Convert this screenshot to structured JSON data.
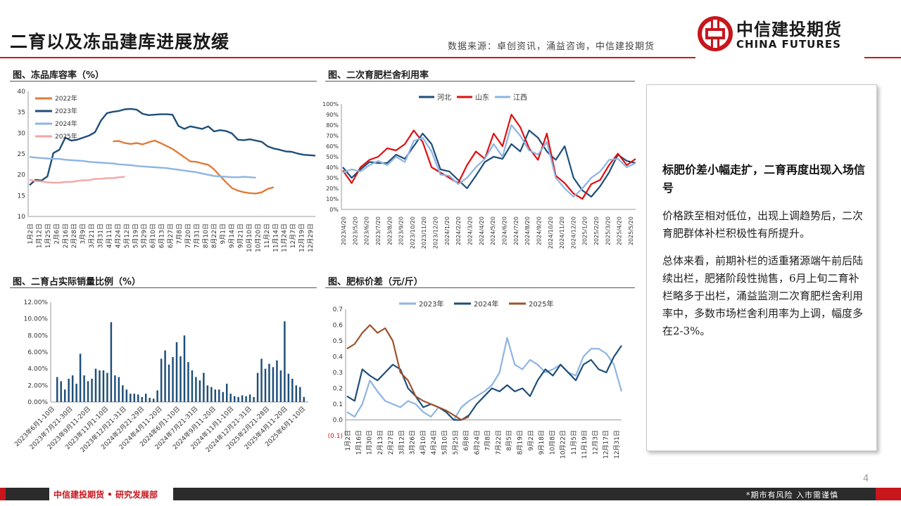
{
  "header": {
    "title": "二育以及冻品建库进展放缓",
    "source": "数据来源：卓创资讯，涌益咨询，中信建投期货",
    "logo_cn": "中信建投期货",
    "logo_en": "CHINA FUTURES"
  },
  "colors": {
    "brand_red": "#c8161d",
    "navy": "#1f4e79",
    "orange": "#e07b39",
    "lightblue": "#8eb4e3",
    "pink": "#f4a6a6",
    "red": "#e01010",
    "brown": "#a0522d"
  },
  "panels": {
    "p1_title": "图、冻品库容率（%）",
    "p2_title": "图、二次育肥栏舍利用率",
    "p3_title": "图、二育占实际销量比例（%）",
    "p4_title": "图、肥标价差（元/斤）"
  },
  "textbox": {
    "heading": "标肥价差小幅走扩，二育再度出现入场信号",
    "para1": "价格跌至相对低位，出现上调趋势后，二次育肥群体补栏积极性有所提升。",
    "para2": "总体来看，前期补栏的适重猪源端午前后陆续出栏，肥猪阶段性抛售，6月上旬二育补栏略多于出栏，涌益监测二次育肥栏舍利用率中，多数市场栏舍利用率为上调，幅度多在2-3%。"
  },
  "footer": {
    "left": "中信建投期货 • 研究发展部",
    "right": "*期市有风险  入市需谨慎",
    "page": "4"
  },
  "chart_data": [
    {
      "type": "line",
      "title": "图、冻品库容率（%）",
      "ylim": [
        10,
        40
      ],
      "yticks": [
        "40",
        "35",
        "30",
        "25",
        "20",
        "15",
        "10"
      ],
      "xticks": [
        "1月2日",
        "1月12日",
        "1月25日",
        "2月6日",
        "2月16日",
        "2月28日",
        "3月9日",
        "3月21日",
        "3月31日",
        "4月11日",
        "4月24日",
        "5月12日",
        "5月19日",
        "5月29日",
        "6月10日",
        "6月13日",
        "6月27日",
        "7月8日",
        "7月20日",
        "7月31日",
        "8月10日",
        "8月22日",
        "9月1日",
        "9月14日",
        "9月21日",
        "10月10日",
        "10月20日",
        "11月2日",
        "11月14日",
        "11月24日",
        "12月7日",
        "12月19日",
        "12月29日"
      ],
      "series": [
        {
          "name": "2022年",
          "color": "#e07b39",
          "start": 14,
          "values": [
            28.0,
            28.1,
            27.6,
            27.4,
            27.6,
            27.3,
            27.8,
            28.2,
            27.6,
            26.9,
            26.2,
            25.2,
            24.2,
            23.2,
            23.1,
            22.7,
            22.4,
            21.3,
            19.7,
            18.2,
            16.8,
            16.2,
            15.8,
            15.6,
            15.5,
            15.8,
            16.6,
            17.0
          ]
        },
        {
          "name": "2023年",
          "color": "#1f4e79",
          "start": 0,
          "values": [
            17.5,
            18.8,
            18.6,
            19.6,
            25.2,
            26.0,
            28.9,
            28.2,
            28.4,
            28.9,
            29.4,
            30.2,
            33.0,
            34.8,
            35.1,
            35.3,
            35.7,
            35.8,
            35.6,
            34.6,
            34.3,
            34.4,
            34.5,
            34.5,
            34.4,
            31.7,
            31.0,
            31.6,
            31.3,
            31.0,
            31.6,
            30.4,
            30.7,
            30.5,
            29.9,
            28.4,
            28.3,
            28.5,
            28.2,
            27.9,
            26.8,
            26.3,
            26.0,
            25.6,
            25.5,
            25.1,
            24.8,
            24.7,
            24.6
          ]
        },
        {
          "name": "2024年",
          "color": "#8eb4e3",
          "start": 0,
          "values": [
            24.3,
            24.1,
            24.0,
            23.9,
            23.8,
            23.8,
            23.6,
            23.5,
            23.4,
            23.3,
            23.1,
            23.0,
            22.9,
            22.8,
            22.7,
            22.5,
            22.4,
            22.3,
            22.1,
            22.0,
            21.9,
            21.8,
            21.7,
            21.6,
            21.4,
            21.2,
            21.0,
            20.8,
            20.6,
            20.3,
            20.0,
            19.7,
            19.6,
            19.5,
            19.4,
            19.4,
            19.5,
            19.4,
            19.3
          ]
        },
        {
          "name": "2025年",
          "color": "#f4a6a6",
          "start": 0,
          "values": [
            18.8,
            18.5,
            18.4,
            18.2,
            18.1,
            18.1,
            18.3,
            18.3,
            18.5,
            18.7,
            18.7,
            19.0,
            19.0,
            19.2,
            19.2,
            19.4,
            19.5
          ]
        }
      ]
    },
    {
      "type": "line",
      "title": "图、二次育肥栏舍利用率",
      "ylim": [
        0,
        100
      ],
      "yticks": [
        "100%",
        "90%",
        "80%",
        "70%",
        "60%",
        "50%",
        "40%",
        "30%",
        "20%",
        "10%",
        "0%"
      ],
      "xticks": [
        "2023/4/20",
        "2023/5/20",
        "2023/6/20",
        "2023/7/20",
        "2023/8/20",
        "2023/9/20",
        "2023/10/20",
        "2023/11/20",
        "2023/12/20",
        "2024/1/20",
        "2024/2/20",
        "2024/3/20",
        "2024/4/20",
        "2024/5/20",
        "2024/6/20",
        "2024/7/20",
        "2024/8/20",
        "2024/9/20",
        "2024/10/20",
        "2024/11/20",
        "2024/12/20",
        "2025/1/20",
        "2025/2/20",
        "2025/3/20",
        "2025/4/20",
        "2025/5/20"
      ],
      "series": [
        {
          "name": "河北",
          "color": "#1f4e79",
          "values": [
            40,
            30,
            38,
            45,
            44,
            44,
            52,
            48,
            60,
            72,
            62,
            38,
            36,
            28,
            20,
            32,
            45,
            50,
            48,
            62,
            55,
            75,
            68,
            55,
            47,
            60,
            30,
            18,
            12,
            22,
            35,
            52,
            46,
            44
          ]
        },
        {
          "name": "山东",
          "color": "#e01010",
          "values": [
            37,
            25,
            40,
            47,
            50,
            58,
            56,
            62,
            75,
            64,
            40,
            35,
            30,
            25,
            42,
            55,
            48,
            72,
            60,
            90,
            78,
            58,
            47,
            72,
            32,
            25,
            15,
            10,
            24,
            28,
            42,
            53,
            42,
            48
          ]
        },
        {
          "name": "江西",
          "color": "#8eb4e3",
          "values": [
            35,
            38,
            36,
            42,
            46,
            42,
            50,
            45,
            65,
            68,
            55,
            33,
            32,
            24,
            30,
            40,
            48,
            62,
            50,
            80,
            70,
            56,
            52,
            64,
            30,
            20,
            12,
            20,
            30,
            36,
            47,
            48,
            40,
            44
          ]
        }
      ]
    },
    {
      "type": "bar",
      "title": "图、二育占实际销量比例（%）",
      "ylim": [
        0,
        12
      ],
      "yticks": [
        "12.00%",
        "10.00%",
        "8.00%",
        "6.00%",
        "4.00%",
        "2.00%",
        "0.00%"
      ],
      "xticks": [
        "2023年6月1-10日",
        "2023年7月21-30日",
        "2023年9月11-20日",
        "2023年11月1-10日",
        "2023年12月21-31日",
        "2024年2月21-29日",
        "2024年4月11-20日",
        "2024年6月1-10日",
        "2024年7月21-31日",
        "2024年9月11-20日",
        "2024年11月1-10日",
        "2024年12月21-31日",
        "2025年2月21-28日",
        "2025年4月11-20日",
        "2025年6月1-10日"
      ],
      "values": [
        3.0,
        2.5,
        1.5,
        2.8,
        3.2,
        2.2,
        5.8,
        3.2,
        2.5,
        2.8,
        4.0,
        3.8,
        3.8,
        3.5,
        9.6,
        3.2,
        3.0,
        2.0,
        1.5,
        1.0,
        1.0,
        0.9,
        0.6,
        1.0,
        0.5,
        0.4,
        1.4,
        5.2,
        6.2,
        4.5,
        5.4,
        7.2,
        5.5,
        8.0,
        4.8,
        3.8,
        3.0,
        2.6,
        3.5,
        2.0,
        1.8,
        1.5,
        1.5,
        1.2,
        2.2,
        1.0,
        0.7,
        0.6,
        0.8,
        0.7,
        0.9,
        0.6,
        3.5,
        5.2,
        4.0,
        4.6,
        4.2,
        5.0,
        3.8,
        9.7,
        3.4,
        2.8,
        2.0,
        1.8,
        0.6
      ]
    },
    {
      "type": "line",
      "title": "图、肥标价差（元/斤）",
      "ylim": [
        -0.1,
        0.7
      ],
      "yticks": [
        "0.7",
        "0.6",
        "0.5",
        "0.4",
        "0.3",
        "0.2",
        "0.1",
        "0.0",
        "(0.1)"
      ],
      "xticks": [
        "1月2日",
        "1月16日",
        "1月30日",
        "2月13日",
        "2月27日",
        "3月12日",
        "3月26日",
        "4月10日",
        "4月24日",
        "5月10日",
        "5月25日",
        "6月8日",
        "6月24日",
        "7月8日",
        "7月22日",
        "8月5日",
        "8月19日",
        "9月2日",
        "9月18日",
        "10月8日",
        "10月22日",
        "11月5日",
        "11月19日",
        "12月3日",
        "12月17日",
        "12月31日"
      ],
      "series": [
        {
          "name": "2023年",
          "color": "#8eb4e3",
          "values": [
            0.05,
            0.02,
            0.1,
            0.25,
            0.18,
            0.12,
            0.1,
            0.08,
            0.12,
            0.1,
            0.05,
            0.02,
            0.08,
            0.05,
            0.0,
            0.08,
            0.12,
            0.15,
            0.18,
            0.22,
            0.3,
            0.52,
            0.35,
            0.32,
            0.38,
            0.35,
            0.3,
            0.32,
            0.35,
            0.3,
            0.28,
            0.4,
            0.45,
            0.45,
            0.42,
            0.35,
            0.18
          ]
        },
        {
          "name": "2024年",
          "color": "#1f4e79",
          "values": [
            0.15,
            0.12,
            0.32,
            0.28,
            0.25,
            0.3,
            0.35,
            0.32,
            0.2,
            0.15,
            0.08,
            0.1,
            0.08,
            0.05,
            0.0,
            0.0,
            0.03,
            0.1,
            0.15,
            0.2,
            0.18,
            0.22,
            0.18,
            0.2,
            0.15,
            0.25,
            0.32,
            0.28,
            0.35,
            0.3,
            0.25,
            0.35,
            0.38,
            0.32,
            0.3,
            0.4,
            0.47
          ]
        },
        {
          "name": "2025年",
          "color": "#a0522d",
          "values": [
            0.45,
            0.48,
            0.55,
            0.6,
            0.55,
            0.58,
            0.5,
            0.3,
            0.25,
            0.15,
            0.12,
            0.1,
            0.08,
            0.06,
            0.03,
            0.0,
            0.02
          ]
        }
      ]
    }
  ]
}
